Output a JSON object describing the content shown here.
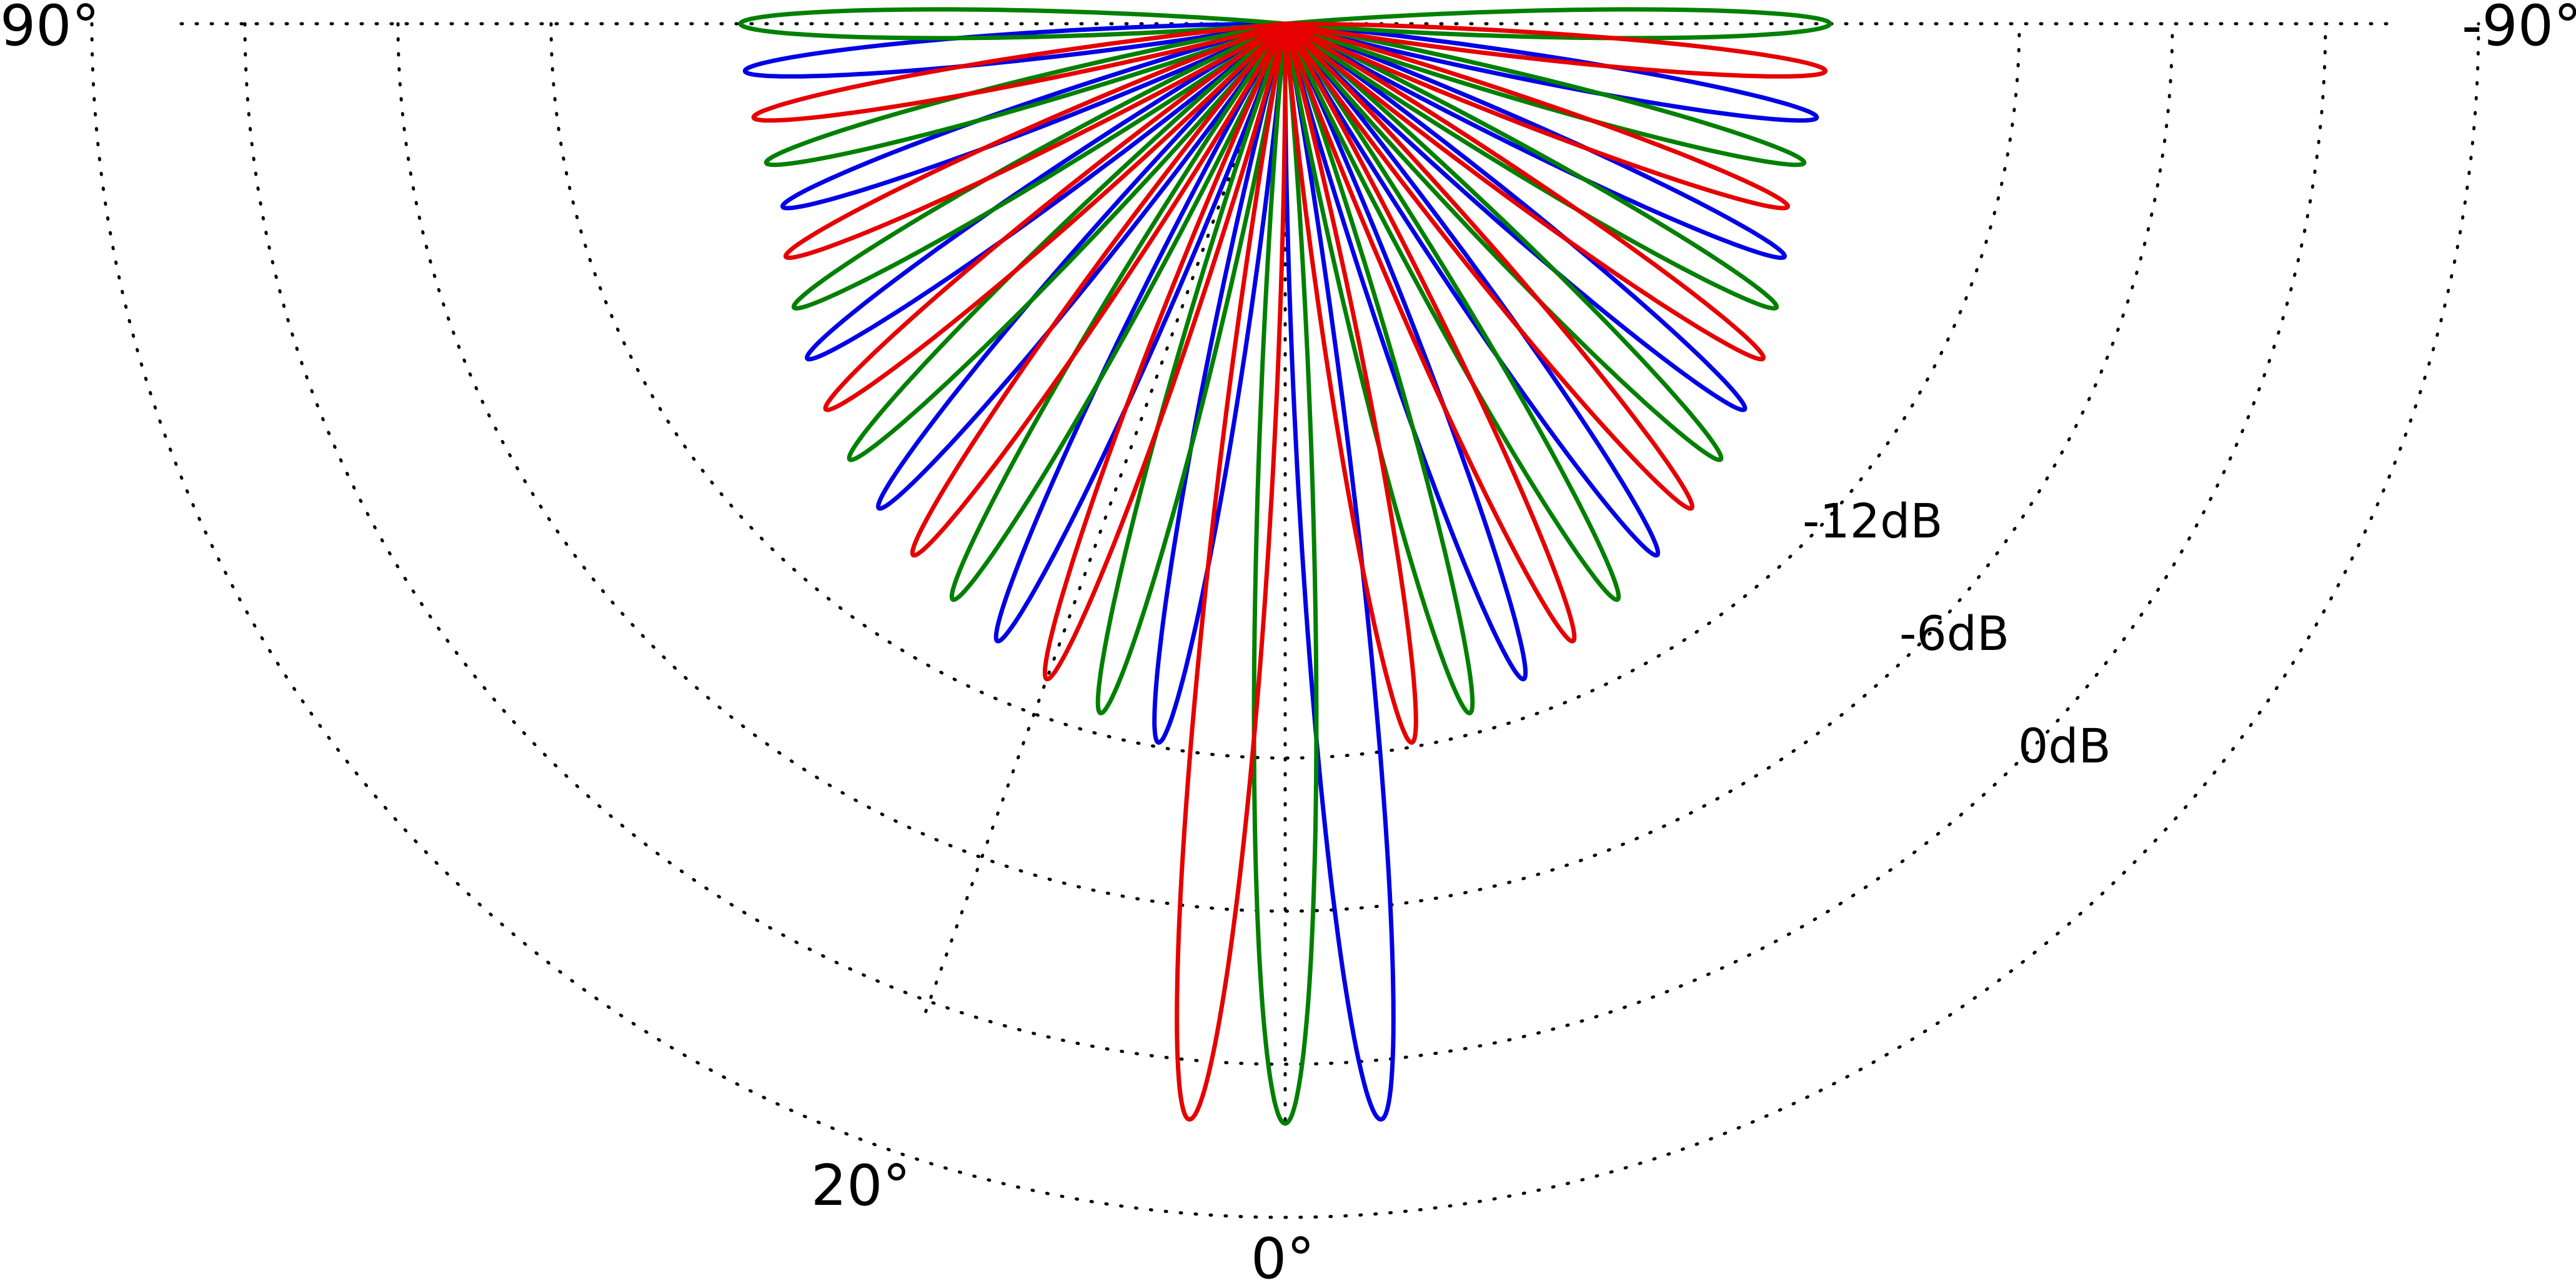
{
  "chart_data": {
    "type": "polar-line",
    "title": "",
    "description_of_axes": {
      "angle_unit": "degrees",
      "radius_unit": "dB"
    },
    "angle_range": [
      -90,
      90
    ],
    "angle_ticks": [
      {
        "angle": 90,
        "label": "90°"
      },
      {
        "angle": 20,
        "label": "20°"
      },
      {
        "angle": 0,
        "label": "0°"
      },
      {
        "angle": -90,
        "label": "-90°"
      }
    ],
    "radius_range_db": [
      -24,
      0
    ],
    "radius_rings": [
      {
        "db": -18,
        "label": ""
      },
      {
        "db": -12,
        "label": "-12dB"
      },
      {
        "db": -6,
        "label": "-6dB"
      },
      {
        "db": 0,
        "label": "0dB"
      }
    ],
    "grid": true,
    "series": [
      {
        "color": "#0000e6",
        "lobe_peaks_deg": [
          -5,
          10,
          25,
          40,
          55,
          70,
          85,
          -20,
          -35,
          -50,
          -65,
          -80
        ],
        "main_lobe_deg": -5
      },
      {
        "color": "#008000",
        "lobe_peaks_deg": [
          0,
          15,
          30,
          45,
          60,
          75,
          90,
          -15,
          -30,
          -45,
          -60,
          -75,
          -90
        ],
        "main_lobe_deg": 0
      },
      {
        "color": "#e60000",
        "lobe_peaks_deg": [
          5,
          20,
          35,
          50,
          65,
          80,
          -10,
          -25,
          -40,
          -55,
          -70,
          -85
        ],
        "main_lobe_deg": 5
      }
    ]
  }
}
